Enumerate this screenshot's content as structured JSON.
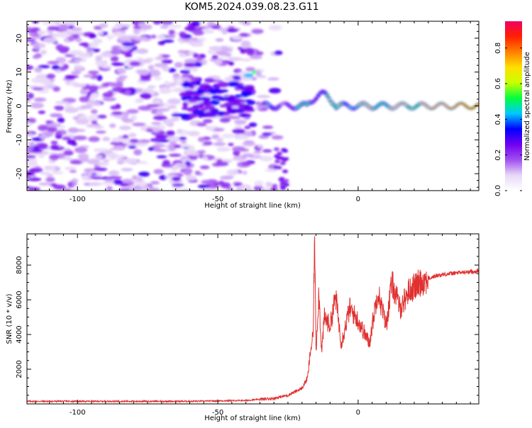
{
  "title": "KOM5.2024.039.08.23.G11",
  "chart_data": [
    {
      "type": "heatmap",
      "xlabel": "Height of straight line (km)",
      "ylabel": "Frequency (Hz)",
      "xlim": [
        -118,
        43
      ],
      "ylim": [
        -25,
        25
      ],
      "x_ticks": [
        -100,
        -50,
        0
      ],
      "x_tick_labels": [
        "-100",
        "-50",
        "0"
      ],
      "y_ticks": [
        -20,
        -10,
        0,
        10,
        20
      ],
      "y_tick_labels": [
        "-20",
        "-10",
        "0",
        "10",
        "20"
      ],
      "colorbar": {
        "label": "Normalized spectral amplitude",
        "range": [
          0,
          0.95
        ],
        "ticks": [
          0,
          0.2,
          0.4,
          0.6,
          0.8
        ],
        "tick_labels": [
          "0.0",
          "0.2",
          "0.4",
          "0.6",
          "0.8"
        ],
        "colors": [
          "#ffffff",
          "#e8d8f8",
          "#a050f0",
          "#7000f0",
          "#0000ff",
          "#00c8ff",
          "#00ff40",
          "#c8ff00",
          "#ffe000",
          "#ff8000",
          "#ff2000",
          "#f00060"
        ]
      },
      "features": {
        "noise_region_x": [
          -118,
          -27
        ],
        "band_center_hz": 0,
        "band_start_x": -35,
        "band_amplitude_at_end": 0.95
      }
    },
    {
      "type": "line",
      "xlabel": "Height of straight line (km)",
      "ylabel": "SNR (10 * v/v)",
      "xlim": [
        -118,
        43
      ],
      "ylim": [
        0,
        9800
      ],
      "x_ticks": [
        -100,
        -50,
        0
      ],
      "x_tick_labels": [
        "-100",
        "-50",
        "0"
      ],
      "y_ticks": [
        2000,
        4000,
        6000,
        8000
      ],
      "y_tick_labels": [
        "2000",
        "4000",
        "6000",
        "8000"
      ],
      "series": [
        {
          "color": "#e03030",
          "keypoints": [
            [
              -118,
              150
            ],
            [
              -60,
              150
            ],
            [
              -40,
              200
            ],
            [
              -30,
              320
            ],
            [
              -25,
              500
            ],
            [
              -20,
              900
            ],
            [
              -18,
              1500
            ],
            [
              -17,
              3000
            ],
            [
              -16,
              4000
            ],
            [
              -15.5,
              9800
            ],
            [
              -15,
              3000
            ],
            [
              -14,
              6500
            ],
            [
              -13,
              3000
            ],
            [
              -12,
              5000
            ],
            [
              -10,
              4500
            ],
            [
              -8,
              6200
            ],
            [
              -6,
              3500
            ],
            [
              -3,
              5500
            ],
            [
              0,
              4800
            ],
            [
              4,
              3500
            ],
            [
              7,
              6500
            ],
            [
              10,
              4500
            ],
            [
              12,
              7000
            ],
            [
              15,
              5500
            ],
            [
              18,
              6500
            ],
            [
              22,
              7000
            ],
            [
              28,
              7400
            ],
            [
              35,
              7550
            ],
            [
              43,
              7650
            ]
          ]
        }
      ]
    }
  ]
}
